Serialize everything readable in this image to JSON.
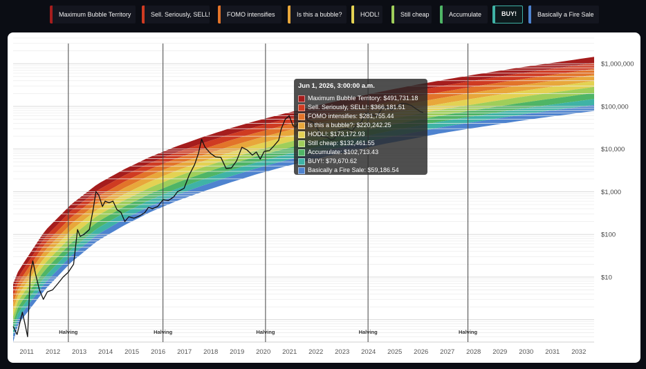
{
  "legend": [
    {
      "label": "Maximum Bubble Territory",
      "color": "#a51d1d",
      "active": false
    },
    {
      "label": "Sell. Seriously, SELL!",
      "color": "#cf3b22",
      "active": false
    },
    {
      "label": "FOMO intensifies",
      "color": "#e2742a",
      "active": false
    },
    {
      "label": "Is this a bubble?",
      "color": "#e8a73b",
      "active": false
    },
    {
      "label": "HODL!",
      "color": "#e3d253",
      "active": false
    },
    {
      "label": "Still cheap",
      "color": "#9fce5a",
      "active": false
    },
    {
      "label": "Accumulate",
      "color": "#4fb566",
      "active": false
    },
    {
      "label": "BUY!",
      "color": "#3fb3a6",
      "active": true
    },
    {
      "label": "Basically a Fire Sale",
      "color": "#4e83cf",
      "active": false
    }
  ],
  "tooltip": {
    "title": "Jun 1, 2026, 3:00:00 a.m.",
    "rows": [
      {
        "label": "Maximum Bubble Territory: $491,731.18",
        "color": "#a51d1d"
      },
      {
        "label": "Sell. Seriously, SELL!: $366,181.51",
        "color": "#cf3b22"
      },
      {
        "label": "FOMO intensifies: $281,755.44",
        "color": "#e2742a"
      },
      {
        "label": "Is this a bubble?: $220,242.25",
        "color": "#e8a73b"
      },
      {
        "label": "HODL!: $173,172.93",
        "color": "#e3d253"
      },
      {
        "label": "Still cheap: $132,461.55",
        "color": "#9fce5a"
      },
      {
        "label": "Accumulate: $102,713.43",
        "color": "#4fb566"
      },
      {
        "label": "BUY!: $79,670.62",
        "color": "#3fb3a6"
      },
      {
        "label": "Basically a Fire Sale: $59,186.54",
        "color": "#4e83cf"
      }
    ]
  },
  "chart_data": {
    "type": "area",
    "xlim": [
      2010.8,
      2032.9
    ],
    "ylim": [
      0.3,
      4000000
    ],
    "yscale": "log",
    "x_ticks": [
      "2011",
      "2012",
      "2013",
      "2014",
      "2015",
      "2016",
      "2017",
      "2018",
      "2019",
      "2020",
      "2021",
      "2022",
      "2023",
      "2024",
      "2025",
      "2026",
      "2027",
      "2028",
      "2029",
      "2030",
      "2031",
      "2032"
    ],
    "y_ticks": [
      {
        "value": 10,
        "label": "$10"
      },
      {
        "value": 100,
        "label": "$100"
      },
      {
        "value": 1000,
        "label": "$1,000"
      },
      {
        "value": 10000,
        "label": "$10,000"
      },
      {
        "value": 100000,
        "label": "$100,000"
      },
      {
        "value": 1000000,
        "label": "$1,000,000"
      }
    ],
    "grid": true,
    "halvings": [
      {
        "x": 2012.9,
        "label": "Halving"
      },
      {
        "x": 2016.5,
        "label": "Halving"
      },
      {
        "x": 2020.4,
        "label": "Halving"
      },
      {
        "x": 2024.3,
        "label": "Halving"
      },
      {
        "x": 2028.1,
        "label": "Halving"
      }
    ],
    "bands": [
      {
        "name": "Maximum Bubble Territory",
        "color": "#a51d1d",
        "anchor_value": 491731.18
      },
      {
        "name": "Sell. Seriously, SELL!",
        "color": "#cf3b22",
        "anchor_value": 366181.51
      },
      {
        "name": "FOMO intensifies",
        "color": "#e2742a",
        "anchor_value": 281755.44
      },
      {
        "name": "Is this a bubble?",
        "color": "#e8a73b",
        "anchor_value": 220242.25
      },
      {
        "name": "HODL!",
        "color": "#e3d253",
        "anchor_value": 173172.93
      },
      {
        "name": "Still cheap",
        "color": "#9fce5a",
        "anchor_value": 132461.55
      },
      {
        "name": "Accumulate",
        "color": "#4fb566",
        "anchor_value": 102713.43
      },
      {
        "name": "BUY!",
        "color": "#3fb3a6",
        "anchor_value": 79670.62
      },
      {
        "name": "Basically a Fire Sale",
        "color": "#4e83cf",
        "anchor_value": 59186.54
      }
    ],
    "bottom_boundary": [
      [
        2010.8,
        0.3
      ],
      [
        2011,
        0.8
      ],
      [
        2012,
        5
      ],
      [
        2013,
        22
      ],
      [
        2014,
        70
      ],
      [
        2015,
        160
      ],
      [
        2016,
        330
      ],
      [
        2017,
        600
      ],
      [
        2018,
        1000
      ],
      [
        2019,
        1600
      ],
      [
        2020,
        2500
      ],
      [
        2021,
        3700
      ],
      [
        2022,
        5300
      ],
      [
        2023,
        7400
      ],
      [
        2024,
        10000
      ],
      [
        2025,
        13500
      ],
      [
        2026,
        17500
      ],
      [
        2027,
        23000
      ],
      [
        2028,
        29000
      ],
      [
        2029,
        36000
      ],
      [
        2030,
        45000
      ],
      [
        2031,
        55000
      ],
      [
        2032,
        66000
      ],
      [
        2032.9,
        78000
      ]
    ],
    "top_boundary": [
      [
        2010.8,
        7
      ],
      [
        2011,
        14
      ],
      [
        2012,
        120
      ],
      [
        2013,
        500
      ],
      [
        2014,
        1500
      ],
      [
        2015,
        3300
      ],
      [
        2016,
        6500
      ],
      [
        2017,
        11500
      ],
      [
        2018,
        19000
      ],
      [
        2019,
        30000
      ],
      [
        2020,
        45000
      ],
      [
        2021,
        65000
      ],
      [
        2022,
        92000
      ],
      [
        2023,
        128000
      ],
      [
        2024,
        175000
      ],
      [
        2025,
        235000
      ],
      [
        2026,
        310000
      ],
      [
        2027,
        400000
      ],
      [
        2028,
        510000
      ],
      [
        2029,
        640000
      ],
      [
        2030,
        800000
      ],
      [
        2031,
        980000
      ],
      [
        2032,
        1200000
      ],
      [
        2032.9,
        1450000
      ]
    ],
    "price": [
      [
        2010.8,
        0.7
      ],
      [
        2010.95,
        0.45
      ],
      [
        2011.15,
        1.5
      ],
      [
        2011.25,
        0.8
      ],
      [
        2011.35,
        0.4
      ],
      [
        2011.45,
        12
      ],
      [
        2011.55,
        24
      ],
      [
        2011.65,
        12
      ],
      [
        2011.8,
        5
      ],
      [
        2011.95,
        3
      ],
      [
        2012.1,
        4.5
      ],
      [
        2012.3,
        5
      ],
      [
        2012.5,
        7
      ],
      [
        2012.7,
        10
      ],
      [
        2012.9,
        13
      ],
      [
        2013.1,
        20
      ],
      [
        2013.25,
        130
      ],
      [
        2013.35,
        90
      ],
      [
        2013.5,
        100
      ],
      [
        2013.7,
        130
      ],
      [
        2013.85,
        400
      ],
      [
        2013.95,
        1000
      ],
      [
        2014.05,
        850
      ],
      [
        2014.2,
        450
      ],
      [
        2014.3,
        600
      ],
      [
        2014.45,
        550
      ],
      [
        2014.6,
        600
      ],
      [
        2014.75,
        380
      ],
      [
        2014.9,
        330
      ],
      [
        2015.05,
        200
      ],
      [
        2015.2,
        260
      ],
      [
        2015.4,
        240
      ],
      [
        2015.6,
        270
      ],
      [
        2015.8,
        320
      ],
      [
        2015.95,
        430
      ],
      [
        2016.1,
        400
      ],
      [
        2016.3,
        450
      ],
      [
        2016.5,
        650
      ],
      [
        2016.7,
        620
      ],
      [
        2016.9,
        750
      ],
      [
        2017.05,
        1000
      ],
      [
        2017.3,
        1200
      ],
      [
        2017.5,
        2500
      ],
      [
        2017.7,
        4300
      ],
      [
        2017.85,
        8000
      ],
      [
        2017.97,
        17000
      ],
      [
        2018.1,
        11000
      ],
      [
        2018.3,
        8000
      ],
      [
        2018.5,
        6500
      ],
      [
        2018.7,
        6400
      ],
      [
        2018.9,
        3500
      ],
      [
        2019.1,
        3600
      ],
      [
        2019.3,
        5300
      ],
      [
        2019.5,
        11000
      ],
      [
        2019.7,
        9500
      ],
      [
        2019.9,
        7200
      ],
      [
        2020.05,
        8500
      ],
      [
        2020.2,
        5800
      ],
      [
        2020.35,
        8800
      ],
      [
        2020.55,
        9200
      ],
      [
        2020.7,
        11500
      ],
      [
        2020.9,
        16000
      ],
      [
        2021.0,
        30000
      ],
      [
        2021.15,
        50000
      ],
      [
        2021.3,
        60000
      ],
      [
        2021.45,
        35000
      ],
      [
        2021.55,
        33000
      ],
      [
        2021.7,
        45000
      ],
      [
        2021.87,
        65000
      ],
      [
        2022.0,
        47000
      ],
      [
        2022.2,
        43000
      ],
      [
        2022.4,
        29000
      ],
      [
        2022.5,
        20000
      ],
      [
        2022.75,
        19000
      ],
      [
        2022.87,
        16500
      ],
      [
        2023.0,
        17000
      ],
      [
        2023.2,
        28000
      ],
      [
        2023.5,
        30000
      ],
      [
        2023.7,
        26500
      ],
      [
        2023.9,
        40000
      ],
      [
        2024.05,
        43000
      ],
      [
        2024.2,
        70000
      ],
      [
        2024.45,
        64000
      ],
      [
        2024.65,
        59000
      ],
      [
        2024.85,
        93000
      ],
      [
        2025.0,
        97000
      ],
      [
        2025.2,
        82000
      ],
      [
        2025.45,
        108000
      ],
      [
        2025.6,
        118000
      ],
      [
        2025.8,
        113000
      ],
      [
        2025.95,
        105000
      ],
      [
        2026.1,
        90000
      ],
      [
        2026.3,
        75000
      ],
      [
        2026.4,
        72000
      ]
    ]
  }
}
